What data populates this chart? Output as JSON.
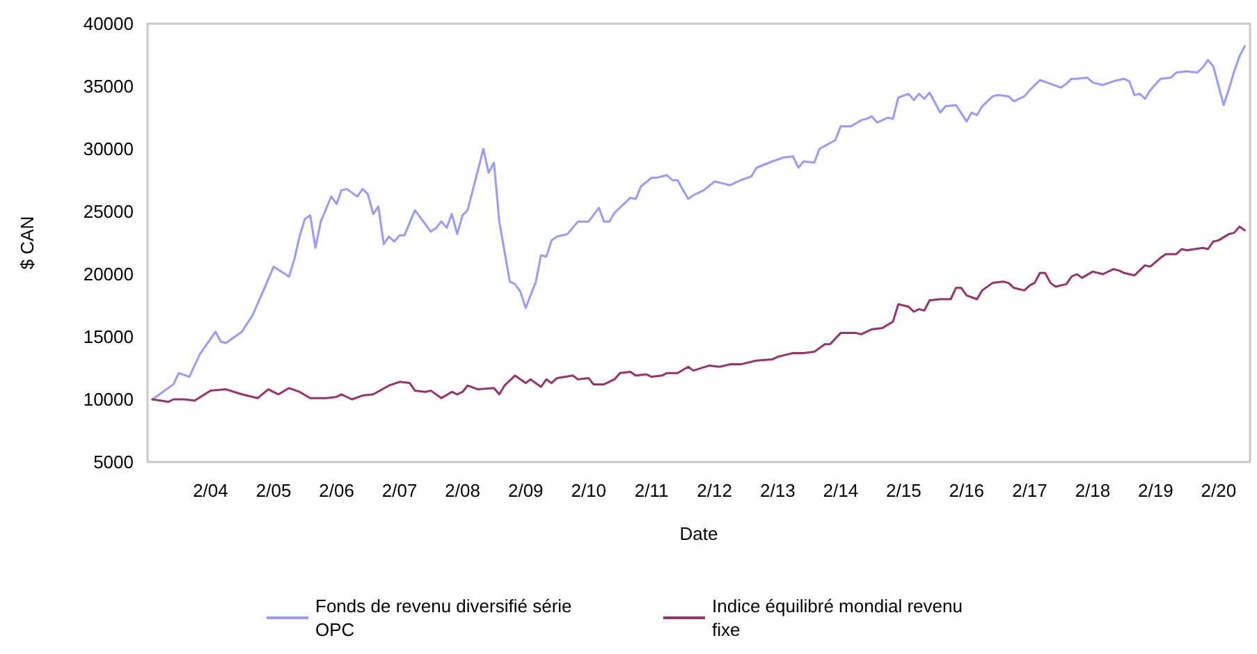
{
  "chart_data": {
    "type": "line",
    "xlabel": "Date",
    "ylabel": "$ CAN",
    "xlim": [
      "2003-02",
      "2020-08"
    ],
    "xticks": [
      {
        "value": "2004-02",
        "label": "2/04"
      },
      {
        "value": "2005-02",
        "label": "2/05"
      },
      {
        "value": "2006-02",
        "label": "2/06"
      },
      {
        "value": "2007-02",
        "label": "2/07"
      },
      {
        "value": "2008-02",
        "label": "2/08"
      },
      {
        "value": "2009-02",
        "label": "2/09"
      },
      {
        "value": "2010-02",
        "label": "2/10"
      },
      {
        "value": "2011-02",
        "label": "2/11"
      },
      {
        "value": "2012-02",
        "label": "2/12"
      },
      {
        "value": "2013-02",
        "label": "2/13"
      },
      {
        "value": "2014-02",
        "label": "2/14"
      },
      {
        "value": "2015-02",
        "label": "2/15"
      },
      {
        "value": "2016-02",
        "label": "2/16"
      },
      {
        "value": "2017-02",
        "label": "2/17"
      },
      {
        "value": "2018-02",
        "label": "2/18"
      },
      {
        "value": "2019-02",
        "label": "2/19"
      },
      {
        "value": "2020-02",
        "label": "2/20"
      }
    ],
    "ylim": [
      5000,
      40000
    ],
    "yticks": [
      5000,
      10000,
      15000,
      20000,
      25000,
      30000,
      35000,
      40000
    ],
    "grid": false,
    "legend": "bottom",
    "marker": "none",
    "line_style": "solid",
    "series": [
      {
        "name": "Fonds de revenu diversifié série OPC",
        "color": "#9999ff",
        "x": [
          "2003-03",
          "2003-07",
          "2003-08",
          "2003-10",
          "2003-12",
          "2004-03",
          "2004-04",
          "2004-05",
          "2004-08",
          "2004-10",
          "2004-12",
          "2005-02",
          "2005-05",
          "2005-06",
          "2005-07",
          "2005-08",
          "2005-09",
          "2005-10",
          "2005-11",
          "2006-01",
          "2006-02",
          "2006-03",
          "2006-04",
          "2006-06",
          "2006-07",
          "2006-08",
          "2006-09",
          "2006-10",
          "2006-11",
          "2006-12",
          "2007-01",
          "2007-02",
          "2007-03",
          "2007-05",
          "2007-08",
          "2007-09",
          "2007-10",
          "2007-11",
          "2007-12",
          "2008-01",
          "2008-02",
          "2008-03",
          "2008-06",
          "2008-07",
          "2008-08",
          "2008-09",
          "2008-11",
          "2008-12",
          "2009-01",
          "2009-02",
          "2009-04",
          "2009-05",
          "2009-06",
          "2009-07",
          "2009-08",
          "2009-09",
          "2009-10",
          "2009-12",
          "2010-02",
          "2010-04",
          "2010-05",
          "2010-06",
          "2010-07",
          "2010-10",
          "2010-11",
          "2010-12",
          "2011-02",
          "2011-03",
          "2011-05",
          "2011-06",
          "2011-07",
          "2011-09",
          "2011-10",
          "2011-12",
          "2012-02",
          "2012-04",
          "2012-05",
          "2012-07",
          "2012-09",
          "2012-10",
          "2013-01",
          "2013-03",
          "2013-05",
          "2013-06",
          "2013-07",
          "2013-09",
          "2013-10",
          "2014-01",
          "2014-02",
          "2014-04",
          "2014-06",
          "2014-07",
          "2014-08",
          "2014-09",
          "2014-11",
          "2014-12",
          "2015-01",
          "2015-03",
          "2015-04",
          "2015-05",
          "2015-06",
          "2015-07",
          "2015-09",
          "2015-10",
          "2015-12",
          "2016-02",
          "2016-03",
          "2016-04",
          "2016-05",
          "2016-07",
          "2016-08",
          "2016-10",
          "2016-11",
          "2017-01",
          "2017-02",
          "2017-04",
          "2017-06",
          "2017-08",
          "2017-09",
          "2017-10",
          "2017-11",
          "2018-01",
          "2018-02",
          "2018-04",
          "2018-06",
          "2018-08",
          "2018-09",
          "2018-10",
          "2018-11",
          "2018-12",
          "2019-01",
          "2019-03",
          "2019-05",
          "2019-06",
          "2019-08",
          "2019-10",
          "2019-11",
          "2019-12",
          "2020-01",
          "2020-03",
          "2020-04",
          "2020-05",
          "2020-06",
          "2020-07"
        ],
        "values": [
          10000,
          11200,
          12100,
          11800,
          13600,
          15400,
          14600,
          14500,
          15400,
          16700,
          18600,
          20600,
          19800,
          21200,
          23000,
          24400,
          24700,
          22100,
          24200,
          26200,
          25600,
          26700,
          26800,
          26200,
          26800,
          26400,
          24800,
          25400,
          22400,
          23000,
          22600,
          23100,
          23100,
          25100,
          23400,
          23700,
          24200,
          23700,
          24800,
          23200,
          24700,
          25100,
          30000,
          28100,
          28900,
          24200,
          19400,
          19200,
          18600,
          17300,
          19400,
          21500,
          21400,
          22700,
          23000,
          23100,
          23200,
          24200,
          24200,
          25300,
          24200,
          24200,
          24900,
          26100,
          26000,
          27000,
          27700,
          27700,
          27900,
          27500,
          27500,
          26000,
          26300,
          26700,
          27400,
          27200,
          27100,
          27500,
          27800,
          28500,
          29000,
          29300,
          29400,
          28500,
          29000,
          28900,
          30000,
          30700,
          31800,
          31800,
          32300,
          32400,
          32600,
          32100,
          32500,
          32400,
          34100,
          34400,
          33900,
          34400,
          34000,
          34500,
          32900,
          33400,
          33500,
          32200,
          32900,
          32700,
          33400,
          34200,
          34300,
          34200,
          33800,
          34200,
          34700,
          35500,
          35200,
          34900,
          35200,
          35600,
          35600,
          35700,
          35300,
          35100,
          35400,
          35600,
          35400,
          34300,
          34400,
          34000,
          34700,
          35600,
          35700,
          36100,
          36200,
          36100,
          36500,
          37100,
          36600,
          33500,
          34800,
          36200,
          37400,
          38200
        ]
      },
      {
        "name": "Indice équilibré mondial revenu fixe",
        "color": "#993366",
        "x": [
          "2003-03",
          "2003-06",
          "2003-07",
          "2003-09",
          "2003-11",
          "2004-02",
          "2004-05",
          "2004-08",
          "2004-11",
          "2005-01",
          "2005-03",
          "2005-05",
          "2005-07",
          "2005-09",
          "2005-12",
          "2006-02",
          "2006-03",
          "2006-05",
          "2006-07",
          "2006-09",
          "2006-12",
          "2007-02",
          "2007-04",
          "2007-05",
          "2007-07",
          "2007-08",
          "2007-10",
          "2007-12",
          "2008-01",
          "2008-02",
          "2008-03",
          "2008-05",
          "2008-08",
          "2008-09",
          "2008-10",
          "2008-12",
          "2009-02",
          "2009-03",
          "2009-05",
          "2009-06",
          "2009-07",
          "2009-08",
          "2009-11",
          "2009-12",
          "2010-02",
          "2010-03",
          "2010-05",
          "2010-07",
          "2010-08",
          "2010-10",
          "2010-11",
          "2011-01",
          "2011-02",
          "2011-04",
          "2011-05",
          "2011-07",
          "2011-09",
          "2011-10",
          "2012-01",
          "2012-03",
          "2012-05",
          "2012-07",
          "2012-10",
          "2013-01",
          "2013-02",
          "2013-05",
          "2013-07",
          "2013-09",
          "2013-11",
          "2013-12",
          "2014-02",
          "2014-05",
          "2014-06",
          "2014-08",
          "2014-10",
          "2014-12",
          "2015-01",
          "2015-03",
          "2015-04",
          "2015-05",
          "2015-06",
          "2015-07",
          "2015-09",
          "2015-11",
          "2015-12",
          "2016-01",
          "2016-02",
          "2016-04",
          "2016-05",
          "2016-07",
          "2016-09",
          "2016-10",
          "2016-11",
          "2017-01",
          "2017-02",
          "2017-03",
          "2017-04",
          "2017-05",
          "2017-06",
          "2017-07",
          "2017-09",
          "2017-10",
          "2017-11",
          "2017-12",
          "2018-02",
          "2018-04",
          "2018-06",
          "2018-07",
          "2018-08",
          "2018-10",
          "2018-12",
          "2019-01",
          "2019-03",
          "2019-04",
          "2019-06",
          "2019-07",
          "2019-08",
          "2019-11",
          "2019-12",
          "2020-01",
          "2020-02",
          "2020-04",
          "2020-05",
          "2020-06",
          "2020-07"
        ],
        "values": [
          10000,
          9800,
          10000,
          10000,
          9900,
          10700,
          10800,
          10400,
          10100,
          10800,
          10400,
          10900,
          10600,
          10100,
          10100,
          10200,
          10400,
          10000,
          10300,
          10400,
          11100,
          11400,
          11300,
          10700,
          10600,
          10700,
          10100,
          10600,
          10400,
          10600,
          11100,
          10800,
          10900,
          10400,
          11100,
          11900,
          11300,
          11600,
          11000,
          11600,
          11300,
          11700,
          11900,
          11600,
          11700,
          11200,
          11200,
          11600,
          12100,
          12200,
          11900,
          12000,
          11800,
          11900,
          12100,
          12100,
          12600,
          12300,
          12700,
          12600,
          12800,
          12800,
          13100,
          13200,
          13400,
          13700,
          13700,
          13800,
          14400,
          14400,
          15300,
          15300,
          15200,
          15600,
          15700,
          16200,
          17600,
          17400,
          17000,
          17200,
          17100,
          17900,
          18000,
          18000,
          18900,
          18900,
          18300,
          18000,
          18700,
          19300,
          19400,
          19300,
          18900,
          18700,
          19100,
          19300,
          20100,
          20100,
          19300,
          19000,
          19200,
          19800,
          20000,
          19700,
          20200,
          20000,
          20400,
          20300,
          20100,
          19900,
          20700,
          20600,
          21300,
          21600,
          21600,
          22000,
          21900,
          22100,
          22000,
          22600,
          22700,
          23200,
          23300,
          23800,
          23500
        ]
      }
    ]
  }
}
